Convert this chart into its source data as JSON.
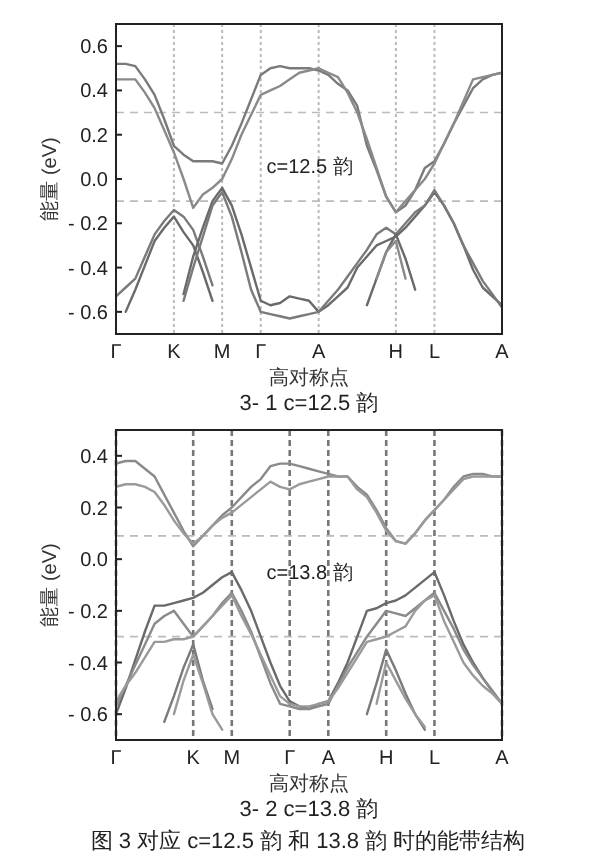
{
  "chart_data": [
    {
      "type": "line",
      "title": "3- 1  c=12.5 韵",
      "xlabel": "高对称点",
      "ylabel": "能量 (eV)",
      "annotations": [
        "c=12.5 韵"
      ],
      "categories": [
        "Γ",
        null,
        null,
        null,
        null,
        null,
        "K",
        null,
        null,
        null,
        null,
        "M",
        null,
        null,
        null,
        "Γ",
        null,
        null,
        null,
        null,
        null,
        "A",
        null,
        null,
        null,
        null,
        null,
        null,
        null,
        "H",
        null,
        null,
        null,
        "L",
        null,
        null,
        null,
        null,
        null,
        null,
        "A"
      ],
      "ylim": [
        -0.7,
        0.7
      ],
      "yticks": [
        {
          "value": 0.6,
          "label": "0.6"
        },
        {
          "value": 0.4,
          "label": "0.4"
        },
        {
          "value": 0.2,
          "label": "0.2"
        },
        {
          "value": 0,
          "label": "0.0"
        },
        {
          "value": -0.2,
          "label": "- 0.2"
        },
        {
          "value": -0.4,
          "label": "- 0.4"
        },
        {
          "value": -0.6,
          "label": "- 0.6"
        }
      ],
      "grid": "x",
      "line_style": "solid",
      "marker": "none",
      "ref_lines": [
        {
          "axis": "y",
          "value": 0.3,
          "label": null,
          "color": "#bbbbbb",
          "line_style": "dashed"
        },
        {
          "axis": "y",
          "value": -0.1,
          "label": null,
          "color": "#bbbbbb",
          "line_style": "dashed"
        }
      ],
      "series": [
        {
          "color": "#7a7a7a",
          "values": [
            0.52,
            0.52,
            0.51,
            0.45,
            0.38,
            0.27,
            0.15,
            0.11,
            0.08,
            0.08,
            0.08,
            0.07,
            0.15,
            0.25,
            0.36,
            0.47,
            0.5,
            0.51,
            0.5,
            0.5,
            0.5,
            0.49,
            0.47,
            0.43,
            0.4,
            0.33,
            0.15,
            0.04,
            -0.08,
            -0.15,
            -0.12,
            -0.05,
            0.05,
            0.08,
            0.16,
            0.25,
            0.33,
            0.41,
            0.45,
            0.47,
            0.48
          ]
        },
        {
          "color": "#8a8a8a",
          "values": [
            0.45,
            0.45,
            0.45,
            0.39,
            0.32,
            0.22,
            0.12,
            0.0,
            -0.13,
            -0.07,
            -0.04,
            0,
            0.09,
            0.2,
            0.29,
            0.38,
            0.4,
            0.42,
            0.45,
            0.48,
            0.49,
            0.5,
            0.48,
            0.46,
            0.39,
            0.3,
            0.18,
            0.05,
            -0.08,
            -0.15,
            -0.1,
            -0.05,
            0.0,
            0.07,
            0.16,
            0.25,
            0.35,
            0.45,
            0.46,
            0.47,
            0.48
          ]
        },
        {
          "color": "#7a7a7a",
          "values": [
            -0.53,
            -0.49,
            -0.45,
            -0.35,
            -0.25,
            -0.19,
            -0.14,
            -0.17,
            -0.23,
            -0.35,
            -0.48,
            null,
            null,
            null,
            null,
            null,
            null,
            null,
            null,
            null,
            null,
            null,
            null,
            null,
            null,
            null,
            null,
            null,
            null,
            null,
            null,
            null,
            null,
            null,
            null,
            null,
            null,
            null,
            null,
            null,
            null
          ]
        },
        {
          "color": "#6a6a6a",
          "values": [
            null,
            -0.6,
            -0.5,
            -0.39,
            -0.28,
            -0.22,
            -0.17,
            -0.24,
            -0.3,
            -0.42,
            -0.55,
            null,
            null,
            null,
            null,
            null,
            null,
            null,
            null,
            null,
            null,
            null,
            null,
            null,
            null,
            null,
            null,
            null,
            null,
            null,
            null,
            null,
            null,
            null,
            null,
            null,
            null,
            null,
            null,
            null,
            null
          ]
        },
        {
          "color": "#6a6a6a",
          "values": [
            null,
            null,
            null,
            null,
            null,
            null,
            null,
            -0.52,
            -0.35,
            -0.22,
            -0.1,
            -0.04,
            -0.12,
            -0.25,
            -0.4,
            -0.55,
            -0.57,
            -0.56,
            -0.53,
            -0.54,
            -0.55,
            -0.6,
            -0.57,
            -0.53,
            -0.49,
            -0.4,
            -0.35,
            -0.3,
            -0.28,
            -0.26,
            -0.22,
            -0.17,
            -0.12,
            -0.06,
            -0.12,
            -0.2,
            -0.3,
            -0.41,
            -0.49,
            -0.53,
            -0.57
          ]
        },
        {
          "color": "#7a7a7a",
          "values": [
            null,
            null,
            null,
            null,
            null,
            null,
            null,
            -0.55,
            -0.4,
            -0.26,
            -0.12,
            -0.06,
            -0.17,
            -0.33,
            -0.5,
            -0.6,
            -0.61,
            -0.62,
            -0.63,
            -0.62,
            -0.61,
            -0.6,
            -0.55,
            -0.5,
            -0.44,
            -0.38,
            -0.32,
            -0.25,
            -0.22,
            -0.25,
            -0.2,
            -0.15,
            -0.12,
            -0.05,
            -0.12,
            -0.2,
            -0.3,
            -0.38,
            -0.46,
            -0.52,
            -0.58
          ]
        },
        {
          "color": "#6a6a6a",
          "values": [
            null,
            null,
            null,
            null,
            null,
            null,
            null,
            null,
            null,
            null,
            null,
            null,
            null,
            null,
            null,
            null,
            null,
            null,
            null,
            null,
            null,
            null,
            null,
            null,
            null,
            null,
            -0.57,
            -0.45,
            -0.33,
            -0.25,
            -0.36,
            -0.5,
            null,
            null,
            null,
            null,
            null,
            null,
            null,
            null,
            null
          ]
        },
        {
          "color": "#8a8a8a",
          "values": [
            null,
            null,
            null,
            null,
            null,
            null,
            null,
            null,
            null,
            null,
            null,
            null,
            null,
            null,
            null,
            null,
            null,
            null,
            null,
            null,
            null,
            null,
            null,
            null,
            null,
            null,
            null,
            -0.45,
            -0.33,
            -0.28,
            -0.45,
            null,
            null,
            null,
            null,
            null,
            null,
            null,
            null,
            null,
            null
          ]
        }
      ]
    },
    {
      "type": "line",
      "title": "3- 2  c=13.8 韵",
      "xlabel": "高对称点",
      "ylabel": "能量 (eV)",
      "annotations": [
        "c=13.8 韵",
        "图 3  对应 c=12.5 韵 和 13.8 韵 时的能带结构"
      ],
      "categories": [
        "Γ",
        null,
        null,
        null,
        null,
        null,
        null,
        null,
        "K",
        null,
        null,
        null,
        "M",
        null,
        null,
        null,
        null,
        null,
        "Γ",
        null,
        null,
        null,
        "A",
        null,
        null,
        null,
        null,
        null,
        "H",
        null,
        null,
        null,
        null,
        "L",
        null,
        null,
        null,
        null,
        null,
        null,
        "A"
      ],
      "ylim": [
        -0.7,
        0.5
      ],
      "yticks": [
        {
          "value": 0.4,
          "label": "0.4"
        },
        {
          "value": 0.2,
          "label": "0.2"
        },
        {
          "value": 0,
          "label": "0.0"
        },
        {
          "value": -0.2,
          "label": "- 0.2"
        },
        {
          "value": -0.4,
          "label": "- 0.4"
        },
        {
          "value": -0.6,
          "label": "- 0.6"
        }
      ],
      "grid": "x",
      "line_style": "solid",
      "marker": "none",
      "ref_lines": [
        {
          "axis": "y",
          "value": 0.09,
          "label": null,
          "color": "#bbbbbb",
          "line_style": "dashed"
        },
        {
          "axis": "y",
          "value": -0.3,
          "label": null,
          "color": "#bbbbbb",
          "line_style": "dashed"
        }
      ],
      "series": [
        {
          "color": "#8a8a8a",
          "values": [
            0.37,
            0.38,
            0.38,
            0.35,
            0.32,
            0.25,
            0.18,
            0.11,
            0.05,
            0.09,
            0.13,
            0.17,
            0.2,
            0.24,
            0.28,
            0.31,
            0.36,
            0.37,
            0.37,
            0.36,
            0.35,
            0.34,
            0.33,
            0.32,
            0.32,
            0.28,
            0.25,
            0.19,
            0.12,
            0.07,
            0.06,
            0.1,
            0.15,
            0.19,
            0.23,
            0.28,
            0.32,
            0.33,
            0.33,
            0.32,
            0.32
          ]
        },
        {
          "color": "#9a9a9a",
          "values": [
            0.28,
            0.29,
            0.29,
            0.28,
            0.26,
            0.21,
            0.15,
            0.1,
            0.06,
            0.09,
            0.13,
            0.16,
            0.18,
            0.21,
            0.24,
            0.27,
            0.3,
            0.28,
            0.27,
            0.29,
            0.3,
            0.31,
            0.32,
            0.32,
            0.32,
            0.27,
            0.24,
            0.18,
            0.11,
            0.07,
            0.06,
            0.1,
            0.15,
            0.19,
            0.23,
            0.27,
            0.31,
            0.32,
            0.32,
            0.32,
            0.32
          ]
        },
        {
          "color": "#6a6a6a",
          "values": [
            -0.6,
            -0.5,
            -0.39,
            -0.28,
            -0.18,
            -0.18,
            -0.17,
            -0.16,
            -0.15,
            -0.13,
            -0.1,
            -0.07,
            -0.05,
            -0.12,
            -0.2,
            -0.3,
            -0.4,
            -0.49,
            -0.55,
            -0.57,
            -0.58,
            -0.56,
            -0.55,
            -0.48,
            -0.4,
            -0.3,
            -0.2,
            -0.19,
            -0.17,
            -0.16,
            -0.14,
            -0.11,
            -0.08,
            -0.05,
            -0.14,
            -0.24,
            -0.33,
            -0.4,
            -0.46,
            -0.51,
            -0.56
          ]
        },
        {
          "color": "#8a8a8a",
          "values": [
            -0.57,
            -0.49,
            -0.41,
            -0.33,
            -0.25,
            -0.22,
            -0.2,
            -0.25,
            -0.3,
            -0.26,
            -0.22,
            -0.17,
            -0.13,
            -0.2,
            -0.28,
            -0.38,
            -0.48,
            -0.56,
            -0.57,
            -0.58,
            -0.58,
            -0.57,
            -0.56,
            -0.49,
            -0.42,
            -0.36,
            -0.3,
            -0.25,
            -0.2,
            -0.21,
            -0.22,
            -0.19,
            -0.16,
            -0.13,
            -0.2,
            -0.27,
            -0.35,
            -0.41,
            -0.46,
            -0.51,
            -0.56
          ]
        },
        {
          "color": "#9a9a9a",
          "values": [
            -0.55,
            -0.49,
            -0.44,
            -0.38,
            -0.32,
            -0.32,
            -0.31,
            -0.31,
            -0.3,
            -0.26,
            -0.22,
            -0.18,
            -0.14,
            -0.22,
            -0.29,
            -0.37,
            -0.45,
            -0.53,
            -0.56,
            -0.57,
            -0.57,
            -0.56,
            -0.55,
            -0.5,
            -0.44,
            -0.38,
            -0.32,
            -0.31,
            -0.3,
            -0.28,
            -0.26,
            -0.2,
            -0.16,
            -0.14,
            -0.24,
            -0.32,
            -0.4,
            -0.45,
            -0.49,
            -0.52,
            -0.56
          ]
        },
        {
          "color": "#7a7a7a",
          "values": [
            null,
            null,
            null,
            null,
            null,
            -0.63,
            -0.53,
            -0.42,
            -0.33,
            -0.47,
            -0.58,
            null,
            null,
            null,
            null,
            null,
            null,
            null,
            null,
            null,
            null,
            null,
            null,
            null,
            null,
            null,
            null,
            null,
            null,
            null,
            null,
            null,
            null,
            null,
            null,
            null,
            null,
            null,
            null,
            null,
            null
          ]
        },
        {
          "color": "#9a9a9a",
          "values": [
            null,
            null,
            null,
            null,
            null,
            null,
            -0.6,
            -0.47,
            -0.37,
            -0.48,
            -0.6,
            -0.66,
            null,
            null,
            null,
            null,
            null,
            null,
            null,
            null,
            null,
            null,
            null,
            null,
            null,
            null,
            null,
            null,
            null,
            null,
            null,
            null,
            null,
            null,
            null,
            null,
            null,
            null,
            null,
            null,
            null
          ]
        },
        {
          "color": "#7a7a7a",
          "values": [
            null,
            null,
            null,
            null,
            null,
            null,
            null,
            null,
            null,
            null,
            null,
            null,
            null,
            null,
            null,
            null,
            null,
            null,
            null,
            null,
            null,
            null,
            null,
            null,
            null,
            null,
            -0.6,
            -0.48,
            -0.35,
            -0.43,
            -0.52,
            -0.6,
            -0.66,
            null,
            null,
            null,
            null,
            null,
            null,
            null,
            null
          ]
        },
        {
          "color": "#9a9a9a",
          "values": [
            null,
            null,
            null,
            null,
            null,
            null,
            null,
            null,
            null,
            null,
            null,
            null,
            null,
            null,
            null,
            null,
            null,
            null,
            null,
            null,
            null,
            null,
            null,
            null,
            null,
            null,
            null,
            -0.56,
            -0.4,
            -0.47,
            -0.54,
            -0.6,
            -0.65,
            null,
            null,
            null,
            null,
            null,
            null,
            null,
            null
          ]
        }
      ]
    }
  ]
}
